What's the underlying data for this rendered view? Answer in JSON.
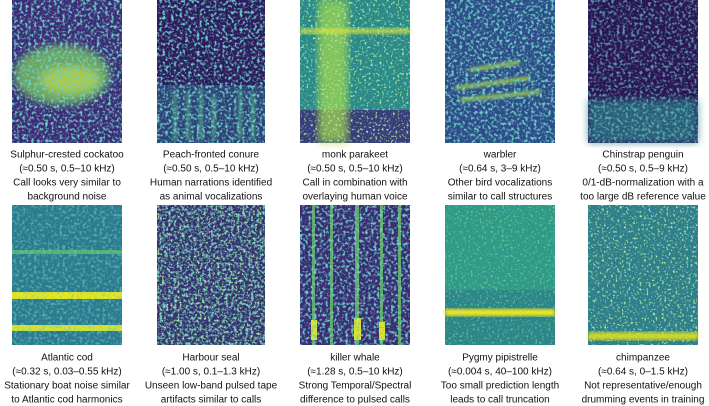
{
  "panels": [
    {
      "lines": [
        "Sulphur-crested cockatoo",
        "(≈0.50 s, 0.5–10 kHz)",
        "Call looks very similar to",
        "background noise"
      ]
    },
    {
      "lines": [
        "Peach-fronted conure",
        "(≈0.50 s, 0.5–10 kHz)",
        "Human narrations identified",
        "as animal vocalizations"
      ]
    },
    {
      "lines": [
        "monk parakeet",
        "(≈0.50 s, 0.5–10 kHz)",
        "Call in combination with",
        "overlaying human voice"
      ]
    },
    {
      "lines": [
        "warbler",
        "(≈0.64 s, 3–9 kHz)",
        "Other bird vocalizations",
        "similar to call structures"
      ]
    },
    {
      "lines": [
        "Chinstrap penguin",
        "(≈0.50 s, 0.5–9 kHz)",
        "0/1-dB-normalization with a",
        "too large dB reference value"
      ]
    },
    {
      "lines": [
        "Atlantic cod",
        "(≈0.32 s, 0.03–0.55 kHz)",
        "Stationary boat noise similar",
        "to Atlantic cod harmonics"
      ]
    },
    {
      "lines": [
        "Harbour seal",
        "(≈1.00 s, 0.1–1.3 kHz)",
        "Unseen low-band pulsed tape",
        "artifacts similar to calls"
      ]
    },
    {
      "lines": [
        "killer whale",
        "(≈1.28 s, 0.5–10 kHz)",
        "Strong Temporal/Spectral",
        "difference to pulsed calls"
      ]
    },
    {
      "lines": [
        "Pygmy pipistrelle",
        "(≈0.004 s, 40–100 kHz)",
        "Too small prediction length",
        "leads to call truncation"
      ]
    },
    {
      "lines": [
        "chimpanzee",
        "(≈0.64 s, 0–1.5 kHz)",
        "Not representative/enough",
        "drumming events in training"
      ]
    }
  ]
}
